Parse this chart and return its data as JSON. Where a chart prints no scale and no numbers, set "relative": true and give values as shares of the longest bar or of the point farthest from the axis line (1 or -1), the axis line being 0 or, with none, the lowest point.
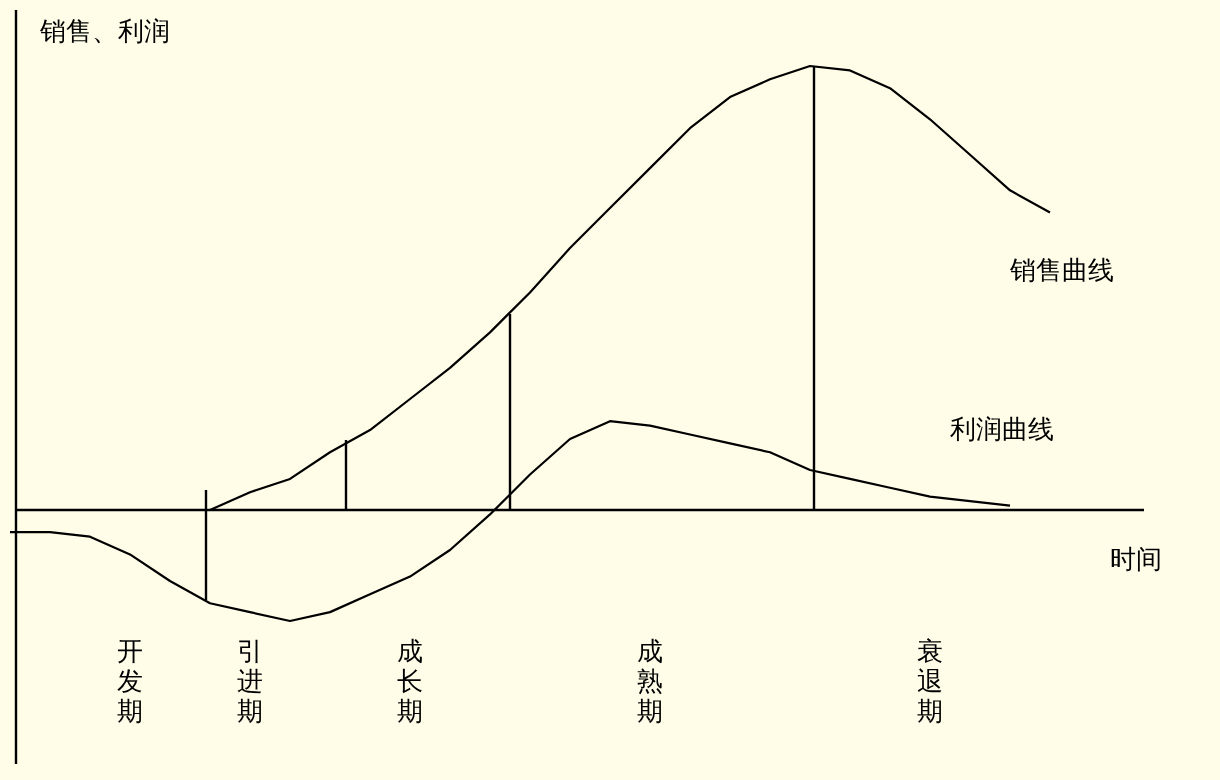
{
  "chart_data": {
    "type": "line",
    "relative": true,
    "ylabel": "销售、利润",
    "xlabel": "时间",
    "categories": [
      null,
      null,
      null,
      "开发期",
      null,
      null,
      "引进期",
      null,
      null,
      null,
      "成长期",
      null,
      null,
      null,
      null,
      null,
      "成熟期",
      null,
      null,
      null,
      null,
      null,
      null,
      "衰退期",
      null,
      null,
      null,
      null
    ],
    "series": [
      {
        "name": "销售曲线",
        "color": "#000000",
        "values": [
          null,
          null,
          null,
          null,
          null,
          0.0,
          0.04,
          0.07,
          0.13,
          0.18,
          0.25,
          0.32,
          0.4,
          0.49,
          0.59,
          0.68,
          0.77,
          0.86,
          0.93,
          0.97,
          1,
          0.99,
          0.95,
          0.88,
          0.8,
          0.72,
          0.67,
          null
        ]
      },
      {
        "name": "利润曲线",
        "color": "#000000",
        "values": [
          -0.05,
          -0.05,
          -0.06,
          -0.1,
          -0.16,
          -0.21,
          -0.23,
          -0.25,
          -0.23,
          -0.19,
          -0.15,
          -0.09,
          -0.01,
          0.08,
          0.16,
          0.2,
          0.19,
          0.17,
          0.15,
          0.13,
          0.09,
          0.07,
          0.05,
          0.03,
          0.02,
          0.01,
          null,
          null
        ]
      }
    ],
    "legend": false,
    "marker": "none",
    "line_style": "solid"
  }
}
